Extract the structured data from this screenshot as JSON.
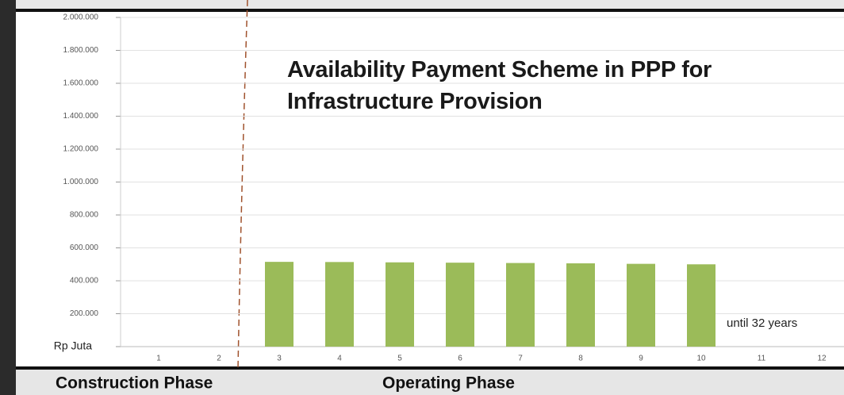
{
  "chart_data": {
    "type": "bar",
    "title": "Availability Payment Scheme in PPP for Infrastructure Provision",
    "categories": [
      "1",
      "2",
      "3",
      "4",
      "5",
      "6",
      "7",
      "8",
      "9",
      "10",
      "11",
      "12"
    ],
    "values": [
      0,
      0,
      515000,
      514000,
      512000,
      510000,
      508000,
      506000,
      503000,
      500000,
      0,
      0
    ],
    "color": "#9bbb59",
    "ylim": [
      0,
      2000000
    ],
    "yticks": [
      {
        "value": 0,
        "label": "Rp Juta"
      },
      {
        "value": 200000,
        "label": "200.000"
      },
      {
        "value": 400000,
        "label": "400.000"
      },
      {
        "value": 600000,
        "label": "600.000"
      },
      {
        "value": 800000,
        "label": "800.000"
      },
      {
        "value": 1000000,
        "label": "1.000.000"
      },
      {
        "value": 1200000,
        "label": "1.200.000"
      },
      {
        "value": 1400000,
        "label": "1.400.000"
      },
      {
        "value": 1600000,
        "label": "1.600.000"
      },
      {
        "value": 1800000,
        "label": "1.800.000"
      },
      {
        "value": 2000000,
        "label": "2.000.000"
      }
    ],
    "grid": true,
    "annotations": [
      "until 32 years",
      "Construction Phase",
      "Operating Phase"
    ]
  }
}
